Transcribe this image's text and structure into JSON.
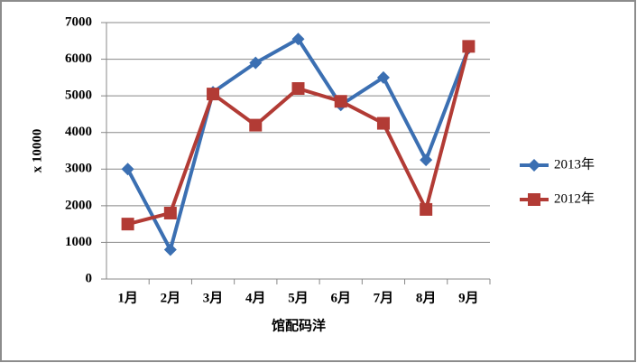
{
  "chart_data": {
    "type": "line",
    "y_label": "x 10000",
    "x_label": "馆配码洋",
    "categories": [
      "1月",
      "2月",
      "3月",
      "4月",
      "5月",
      "6月",
      "7月",
      "8月",
      "9月"
    ],
    "series": [
      {
        "name": "2013年",
        "color": "#3b6fb2",
        "marker": "diamond",
        "values": [
          3000,
          800,
          5100,
          5900,
          6550,
          4750,
          5500,
          3250,
          6300
        ]
      },
      {
        "name": "2012年",
        "color": "#b23b35",
        "marker": "square",
        "values": [
          1500,
          1800,
          5050,
          4200,
          5200,
          4850,
          4250,
          1900,
          6350
        ]
      }
    ],
    "ylim": [
      0,
      7000
    ],
    "yticks": [
      0,
      1000,
      2000,
      3000,
      4000,
      5000,
      6000,
      7000
    ],
    "grid": true,
    "legend": "right"
  }
}
